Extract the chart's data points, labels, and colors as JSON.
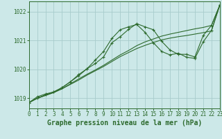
{
  "bg_color": "#cce8e8",
  "grid_color": "#a8cccc",
  "line_color": "#2d6a2d",
  "xlim": [
    0,
    23
  ],
  "ylim": [
    1018.65,
    1022.35
  ],
  "yticks": [
    1019,
    1020,
    1021,
    1022
  ],
  "xticks": [
    0,
    1,
    2,
    3,
    4,
    5,
    6,
    7,
    8,
    9,
    10,
    11,
    12,
    13,
    14,
    15,
    16,
    17,
    18,
    19,
    20,
    21,
    22,
    23
  ],
  "lines": [
    {
      "y": [
        1018.85,
        1019.0,
        1019.12,
        1019.22,
        1019.37,
        1019.57,
        1019.78,
        1020.02,
        1020.32,
        1020.62,
        1021.07,
        1021.37,
        1021.47,
        1021.55,
        1021.28,
        1020.92,
        1020.62,
        1020.5,
        1020.56,
        1020.42,
        1020.38,
        1020.95,
        1021.35,
        1022.22
      ],
      "marker": true
    },
    {
      "y": [
        1018.85,
        1019.0,
        1019.1,
        1019.2,
        1019.33,
        1019.48,
        1019.63,
        1019.8,
        1019.95,
        1020.1,
        1020.27,
        1020.44,
        1020.58,
        1020.72,
        1020.83,
        1020.93,
        1021.02,
        1021.08,
        1021.13,
        1021.17,
        1021.22,
        1021.27,
        1021.33,
        1022.22
      ],
      "marker": false
    },
    {
      "y": [
        1018.85,
        1019.0,
        1019.1,
        1019.2,
        1019.33,
        1019.5,
        1019.67,
        1019.83,
        1019.98,
        1020.14,
        1020.32,
        1020.5,
        1020.65,
        1020.82,
        1020.95,
        1021.05,
        1021.15,
        1021.22,
        1021.28,
        1021.34,
        1021.4,
        1021.45,
        1021.52,
        1022.22
      ],
      "marker": false
    },
    {
      "y": [
        1018.85,
        1019.05,
        1019.15,
        1019.22,
        1019.37,
        1019.57,
        1019.82,
        1020.02,
        1020.2,
        1020.43,
        1020.92,
        1021.13,
        1021.38,
        1021.58,
        1021.47,
        1021.37,
        1020.97,
        1020.67,
        1020.52,
        1020.52,
        1020.43,
        1021.17,
        1021.52,
        1022.22
      ],
      "marker": true
    }
  ],
  "xlabel": "Graphe pression niveau de la mer (hPa)",
  "tick_fontsize": 5.5,
  "label_fontsize": 7.0
}
